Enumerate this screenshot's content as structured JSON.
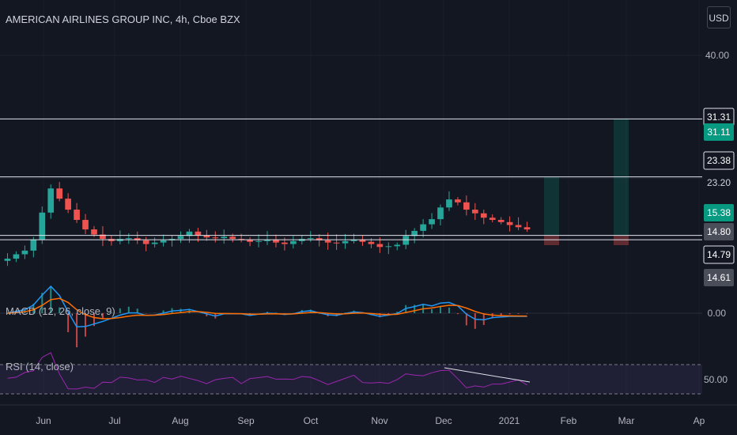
{
  "title": "AMERICAN AIRLINES GROUP INC, 4h, Cboe BZX",
  "currency": "USD",
  "colors": {
    "background": "#131722",
    "up": "#26a69a",
    "down": "#ef5350",
    "macd": "#2196f3",
    "signal": "#ff6d00",
    "rsi": "#9c27b0",
    "level": "#e0e3eb",
    "green_badge": "#089981",
    "gray_badge": "#4a4e59"
  },
  "price_axis_labels": [
    "40.00"
  ],
  "price_levels": [
    {
      "value": 31.31,
      "label": "31.31",
      "style": "line"
    },
    {
      "value": 31.11,
      "label": "31.11",
      "style": "green"
    },
    {
      "value": 23.38,
      "label": "23.38",
      "style": "line"
    },
    {
      "value": 23.2,
      "label": "23.20",
      "style": "plain"
    },
    {
      "value": 15.38,
      "label": "15.38",
      "style": "green-line"
    },
    {
      "value": 14.8,
      "label": "14.80",
      "style": "gray"
    },
    {
      "value": 14.79,
      "label": "14.79",
      "style": "line"
    },
    {
      "value": 14.61,
      "label": "14.61",
      "style": "gray"
    }
  ],
  "time_labels": [
    "Jun",
    "Jul",
    "Aug",
    "Sep",
    "Oct",
    "Nov",
    "Dec",
    "2021",
    "Feb",
    "Mar",
    "Ap"
  ],
  "macd": {
    "label": "MACD (12, 26, close, 9)",
    "zero_label": "0.00"
  },
  "rsi": {
    "label": "RSI (14, close)",
    "mid_label": "50.00"
  },
  "positions": [
    {
      "entry": 15.38,
      "target": 23.38,
      "stop": 14.8
    },
    {
      "entry": 15.38,
      "target": 31.31,
      "stop": 14.8
    }
  ],
  "chart_data": {
    "type": "candlestick",
    "series": [
      {
        "name": "price_close_approx",
        "values": [
          12.2,
          12.8,
          13.3,
          14.8,
          18.5,
          21.8,
          20.4,
          18.9,
          17.5,
          16.2,
          15.5,
          14.9,
          14.6,
          14.9,
          15.0,
          14.7,
          14.2,
          14.4,
          14.7,
          14.9,
          15.3,
          15.9,
          15.4,
          15.1,
          15.0,
          15.2,
          14.9,
          14.8,
          14.5,
          14.6,
          14.8,
          14.4,
          14.2,
          14.6,
          14.9,
          15.0,
          14.7,
          14.4,
          14.3,
          14.6,
          14.8,
          14.5,
          14.2,
          13.8,
          13.9,
          14.1,
          15.3,
          16.0,
          16.9,
          17.6,
          19.2,
          20.3,
          19.9,
          18.9,
          18.4,
          17.8,
          17.5,
          17.2,
          16.8,
          16.5,
          16.2
        ]
      }
    ],
    "title": "AMERICAN AIRLINES GROUP INC, 4h, Cboe BZX",
    "ylim": [
      10,
      42
    ]
  }
}
